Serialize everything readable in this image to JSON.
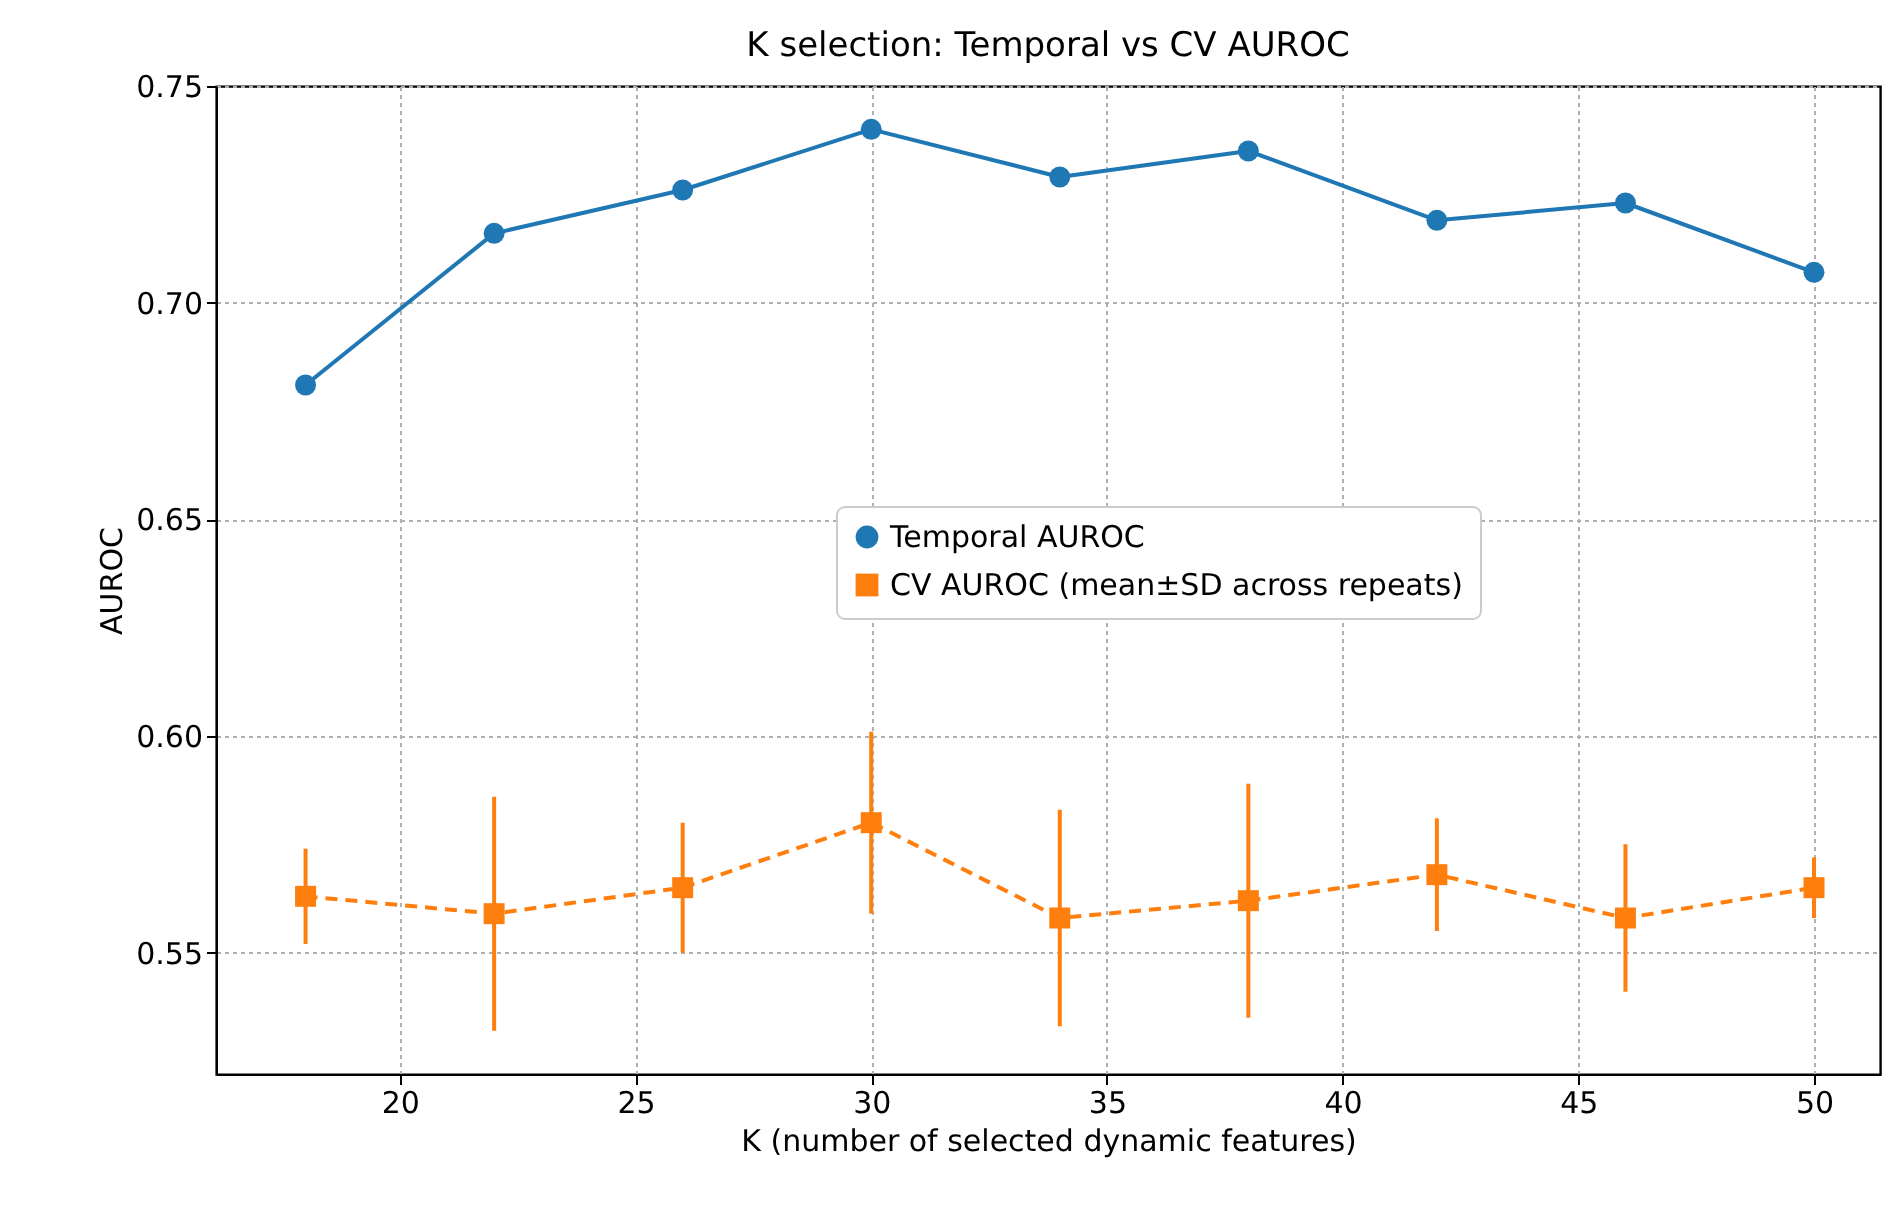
{
  "chart_data": {
    "type": "line",
    "title": "K selection: Temporal vs CV AUROC",
    "xlabel": "K (number of selected dynamic features)",
    "ylabel": "AUROC",
    "x": [
      18,
      22,
      26,
      30,
      34,
      38,
      42,
      46,
      50
    ],
    "series": [
      {
        "name": "Temporal AUROC",
        "color": "#1f77b4",
        "marker": "circle",
        "line_style": "solid",
        "values": [
          0.681,
          0.716,
          0.726,
          0.74,
          0.729,
          0.735,
          0.719,
          0.723,
          0.707
        ]
      },
      {
        "name": "CV AUROC (mean±SD across repeats)",
        "color": "#ff7f0e",
        "marker": "square",
        "line_style": "dashed",
        "values": [
          0.563,
          0.559,
          0.565,
          0.58,
          0.558,
          0.562,
          0.568,
          0.558,
          0.565
        ],
        "errors": [
          0.011,
          0.027,
          0.015,
          0.021,
          0.025,
          0.027,
          0.013,
          0.017,
          0.007
        ]
      }
    ],
    "xlim": [
      16.1,
      51.4
    ],
    "ylim": [
      0.522,
      0.75
    ],
    "xticks": [
      20,
      25,
      30,
      35,
      40,
      45,
      50
    ],
    "yticks": [
      0.55,
      {
        "value": 0.6,
        "label": "0.60"
      },
      0.65,
      {
        "value": 0.7,
        "label": "0.70"
      },
      0.75
    ],
    "grid": true,
    "legend": "right"
  }
}
